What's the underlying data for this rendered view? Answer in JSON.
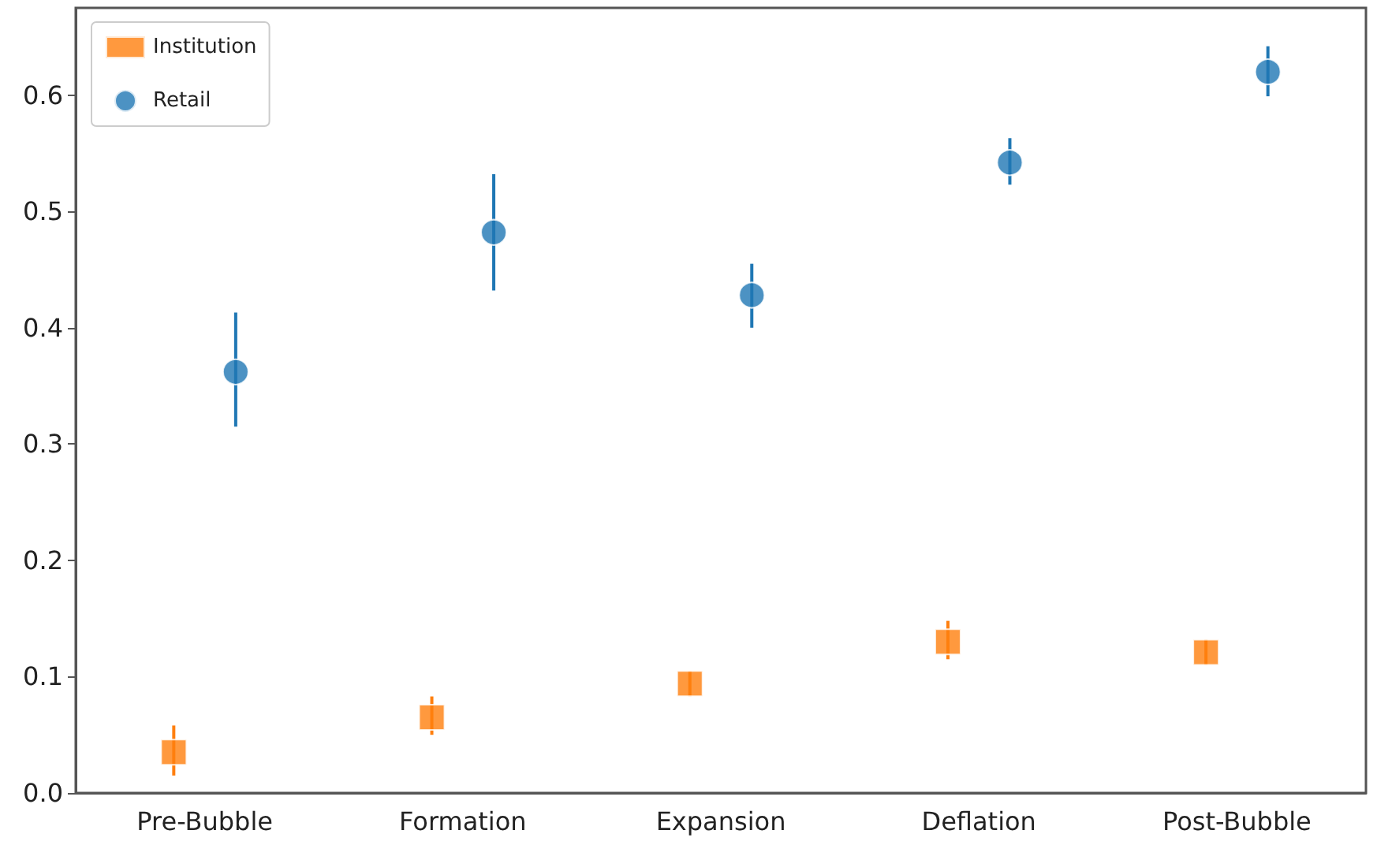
{
  "chart_data": {
    "type": "scatter",
    "categories": [
      "Pre-Bubble",
      "Formation",
      "Expansion",
      "Deflation",
      "Post-Bubble"
    ],
    "series": [
      {
        "name": "Institution",
        "color": "#ff7f0e",
        "marker": "square",
        "values": [
          0.035,
          0.065,
          0.094,
          0.13,
          0.121
        ],
        "errors": [
          [
            0.015,
            0.058
          ],
          [
            0.05,
            0.083
          ],
          [
            0.083,
            0.105
          ],
          [
            0.115,
            0.148
          ],
          [
            0.11,
            0.132
          ]
        ]
      },
      {
        "name": "Retail",
        "color": "#1f77b4",
        "marker": "circle",
        "values": [
          0.362,
          0.482,
          0.428,
          0.542,
          0.62
        ],
        "errors": [
          [
            0.315,
            0.413
          ],
          [
            0.432,
            0.532
          ],
          [
            0.4,
            0.455
          ],
          [
            0.523,
            0.563
          ],
          [
            0.599,
            0.642
          ]
        ]
      }
    ],
    "ylim": [
      0,
      0.675
    ],
    "yticks": [
      {
        "value": 0,
        "label": "0.0"
      },
      {
        "value": 0.1,
        "label": "0.1"
      },
      {
        "value": 0.2,
        "label": "0.2"
      },
      {
        "value": 0.3,
        "label": "0.3"
      },
      {
        "value": 0.4,
        "label": "0.4"
      },
      {
        "value": 0.5,
        "label": "0.5"
      },
      {
        "value": 0.6,
        "label": "0.6"
      }
    ],
    "grid": false,
    "legend": "top left"
  }
}
